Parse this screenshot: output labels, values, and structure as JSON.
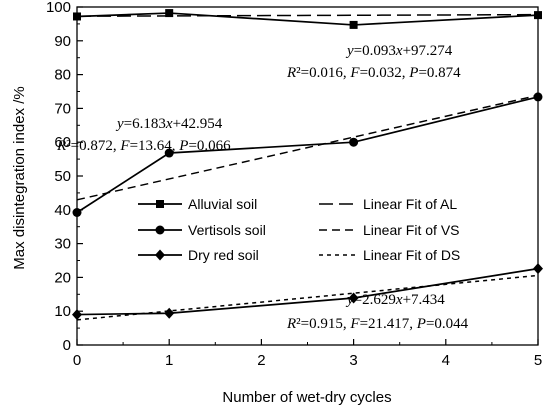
{
  "chart_data": {
    "type": "line",
    "title": "",
    "xlabel": "Number of wet-dry cycles",
    "ylabel": "Max disintegration index /%",
    "xlim": [
      0,
      5
    ],
    "ylim": [
      0,
      100
    ],
    "xticks": [
      0,
      1,
      2,
      3,
      4,
      5
    ],
    "yticks": [
      0,
      10,
      20,
      30,
      40,
      50,
      60,
      70,
      80,
      90,
      100
    ],
    "grid": false,
    "legend_position": "center-left",
    "series": [
      {
        "name": "Alluvial soil",
        "marker": "square",
        "x": [
          0,
          1,
          3,
          5
        ],
        "y": [
          97.2,
          98.2,
          94.7,
          97.6
        ],
        "fit": {
          "name": "Linear Fit of AL",
          "slope": 0.093,
          "intercept": 97.274,
          "dash": "long",
          "eq_main": "y=0.093x+97.274",
          "eq_stats": "R²=0.016, F=0.032, P=0.874"
        }
      },
      {
        "name": "Vertisols soil",
        "marker": "circle",
        "x": [
          0,
          1,
          3,
          5
        ],
        "y": [
          39.2,
          56.8,
          60.0,
          73.4
        ],
        "fit": {
          "name": "Linear Fit of VS",
          "slope": 6.183,
          "intercept": 42.954,
          "dash": "medium",
          "eq_main": "y=6.183x+42.954",
          "eq_stats": "R²=0.872, F=13.64, P=0.066"
        }
      },
      {
        "name": "Dry red soil",
        "marker": "diamond",
        "x": [
          0,
          1,
          3,
          5
        ],
        "y": [
          9.0,
          9.4,
          13.9,
          22.6
        ],
        "fit": {
          "name": "Linear Fit of DS",
          "slope": 2.629,
          "intercept": 7.434,
          "dash": "short",
          "eq_main": "y=2.629x+7.434",
          "eq_stats": "R²=0.915, F=21.417, P=0.044"
        }
      }
    ]
  }
}
